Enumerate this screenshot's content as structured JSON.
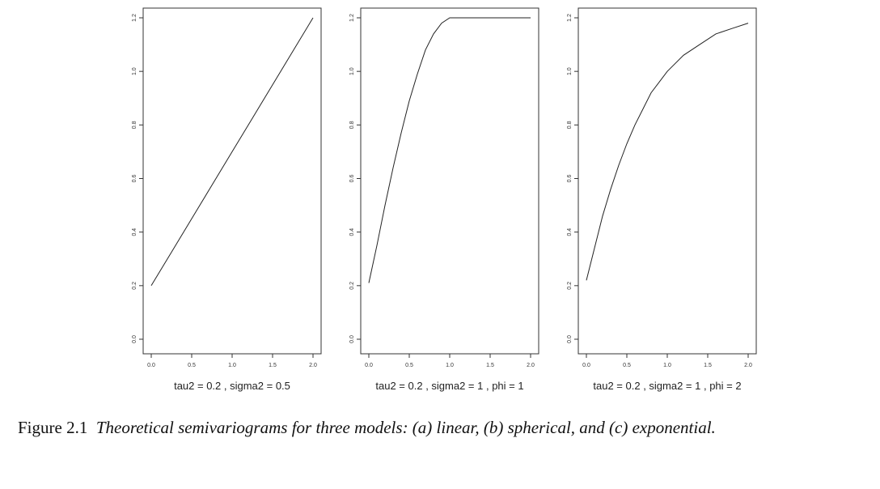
{
  "caption": {
    "label": "Figure 2.1",
    "text": "Theoretical semivariograms for three models: (a) linear, (b) spherical, and (c) exponential."
  },
  "chart_data": [
    {
      "type": "line",
      "title": "",
      "xlabel": "tau2 = 0.2 , sigma2 = 0.5",
      "ylabel": "",
      "xlim": [
        0,
        2
      ],
      "ylim": [
        0,
        1.2
      ],
      "xticks": [
        "0.0",
        "0.5",
        "1.0",
        "1.5",
        "2.0"
      ],
      "yticks": [
        "0.0",
        "0.2",
        "0.4",
        "0.6",
        "0.8",
        "1.0",
        "1.2"
      ],
      "series": [
        {
          "x": [
            0.0,
            0.25,
            0.5,
            0.75,
            1.0,
            1.25,
            1.5,
            1.75,
            2.0
          ],
          "y": [
            0.2,
            0.325,
            0.45,
            0.575,
            0.7,
            0.825,
            0.95,
            1.075,
            1.2
          ]
        }
      ]
    },
    {
      "type": "line",
      "title": "",
      "xlabel": "tau2 = 0.2 , sigma2 = 1 , phi = 1",
      "ylabel": "",
      "xlim": [
        0,
        2
      ],
      "ylim": [
        0,
        1.2
      ],
      "xticks": [
        "0.0",
        "0.5",
        "1.0",
        "1.5",
        "2.0"
      ],
      "yticks": [
        "0.0",
        "0.2",
        "0.4",
        "0.6",
        "0.8",
        "1.0",
        "1.2"
      ],
      "series": [
        {
          "x": [
            0.0,
            0.1,
            0.2,
            0.3,
            0.4,
            0.5,
            0.6,
            0.7,
            0.8,
            0.9,
            1.0,
            1.25,
            1.5,
            1.75,
            2.0
          ],
          "y": [
            0.21,
            0.35,
            0.5,
            0.64,
            0.77,
            0.89,
            0.99,
            1.08,
            1.14,
            1.18,
            1.2,
            1.2,
            1.2,
            1.2,
            1.2
          ]
        }
      ]
    },
    {
      "type": "line",
      "title": "",
      "xlabel": "tau2 = 0.2 , sigma2 = 1 , phi = 2",
      "ylabel": "",
      "xlim": [
        0,
        2
      ],
      "ylim": [
        0,
        1.2
      ],
      "xticks": [
        "0.0",
        "0.5",
        "1.0",
        "1.5",
        "2.0"
      ],
      "yticks": [
        "0.0",
        "0.2",
        "0.4",
        "0.6",
        "0.8",
        "1.0",
        "1.2"
      ],
      "series": [
        {
          "x": [
            0.0,
            0.1,
            0.2,
            0.3,
            0.4,
            0.5,
            0.6,
            0.7,
            0.8,
            0.9,
            1.0,
            1.2,
            1.4,
            1.6,
            1.8,
            2.0
          ],
          "y": [
            0.22,
            0.34,
            0.46,
            0.56,
            0.65,
            0.73,
            0.8,
            0.86,
            0.92,
            0.96,
            1.0,
            1.06,
            1.1,
            1.14,
            1.16,
            1.18
          ]
        }
      ]
    }
  ]
}
